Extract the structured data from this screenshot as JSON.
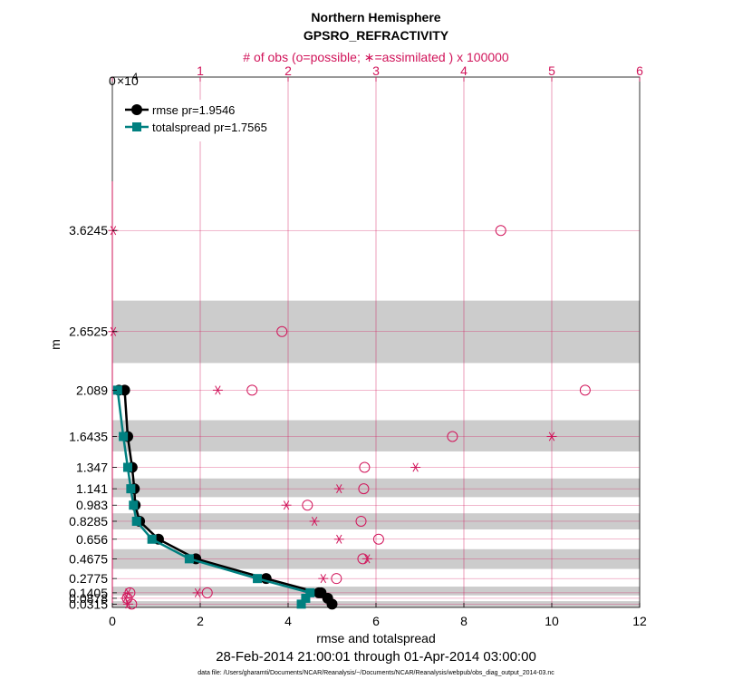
{
  "chart_data": {
    "type": "line",
    "title": "Northern Hemisphere",
    "subtitle": "GPSRO_REFRACTIVITY",
    "top_axis_label": "# of obs (o=possible; ∗=assimilated ) x 100000",
    "top_axis_exponent_base": "0",
    "top_axis_exponent_x": "×10",
    "top_axis_exponent_power": "4",
    "xlabel": "rmse and totalspread",
    "ylabel": "m",
    "date_range": "28-Feb-2014 21:00:01 through 01-Apr-2014 03:00:00",
    "footnote": "data file: /Users/gharamti/Documents/NCAR/Reanalysis/~/Documents/NCAR/Reanalysis/webpub/obs_diag_output_2014-03.nc",
    "xlim": [
      0,
      12
    ],
    "x_ticks": [
      "0",
      "2",
      "4",
      "6",
      "8",
      "10",
      "12"
    ],
    "top_xlim": [
      0,
      6
    ],
    "top_ticks": [
      "0",
      "1",
      "2",
      "3",
      "4",
      "5",
      "6"
    ],
    "ylim": [
      0,
      5.1
    ],
    "levels": [
      0.0315,
      0.0878,
      0.1405,
      0.2775,
      0.4675,
      0.656,
      0.8285,
      0.983,
      1.141,
      1.347,
      1.6435,
      2.089,
      2.6525,
      3.6245
    ],
    "level_labels": [
      "0.0315",
      "0.0878",
      "0.1405",
      "0.2775",
      "0.4675",
      "0.656",
      "0.8285",
      "0.983",
      "1.141",
      "1.347",
      "1.6435",
      "2.089",
      "2.6525",
      "3.6245"
    ],
    "shaded_bands": [
      [
        0.0,
        0.06
      ],
      [
        0.115,
        0.2
      ],
      [
        0.37,
        0.56
      ],
      [
        0.75,
        0.905
      ],
      [
        1.06,
        1.24
      ],
      [
        1.5,
        1.8
      ],
      [
        2.35,
        2.95
      ]
    ],
    "legend": [
      {
        "name": "rmse pr=1.9546",
        "color": "#000000",
        "marker": "circle"
      },
      {
        "name": "totalspread pr=1.7565",
        "color": "#008080",
        "marker": "square"
      }
    ],
    "series": [
      {
        "name": "rmse",
        "x": [
          5.0,
          4.9,
          4.75,
          4.7,
          3.5,
          1.9,
          1.05,
          0.62,
          0.52,
          0.5,
          0.45,
          0.35,
          0.28,
          0.15
        ],
        "y": [
          0.0315,
          0.0878,
          0.1405,
          0.1405,
          0.2775,
          0.4675,
          0.656,
          0.8285,
          0.983,
          1.141,
          1.347,
          1.6435,
          2.089,
          2.089
        ]
      },
      {
        "name": "totalspread",
        "x": [
          4.3,
          4.4,
          4.5,
          3.3,
          1.75,
          0.9,
          0.55,
          0.48,
          0.42,
          0.35,
          0.25,
          0.12
        ],
        "y": [
          0.0315,
          0.0878,
          0.1405,
          0.2775,
          0.4675,
          0.656,
          0.8285,
          0.983,
          1.141,
          1.347,
          1.6435,
          2.089
        ]
      }
    ],
    "obs_possible": {
      "top_x": [
        0.22,
        0.17,
        0.2,
        1.08,
        2.55,
        2.85,
        3.03,
        2.83,
        2.22,
        2.86,
        2.87,
        3.87,
        5.38,
        1.59,
        1.93,
        4.42
      ],
      "y": [
        0.0315,
        0.0878,
        0.1405,
        0.1405,
        0.2775,
        0.4675,
        0.656,
        0.8285,
        0.983,
        1.141,
        1.347,
        1.6435,
        2.089,
        2.089,
        2.6525,
        3.6245
      ]
    },
    "obs_assimilated": {
      "top_x": [
        0.18,
        0.15,
        0.18,
        0.97,
        2.4,
        2.9,
        2.58,
        2.3,
        1.98,
        2.58,
        3.45,
        5.0,
        1.2,
        0.01,
        0.01
      ],
      "y": [
        0.0315,
        0.0878,
        0.1405,
        0.1405,
        0.2775,
        0.4675,
        0.656,
        0.8285,
        0.983,
        1.141,
        1.347,
        1.6435,
        2.089,
        2.6525,
        3.6245
      ]
    }
  }
}
